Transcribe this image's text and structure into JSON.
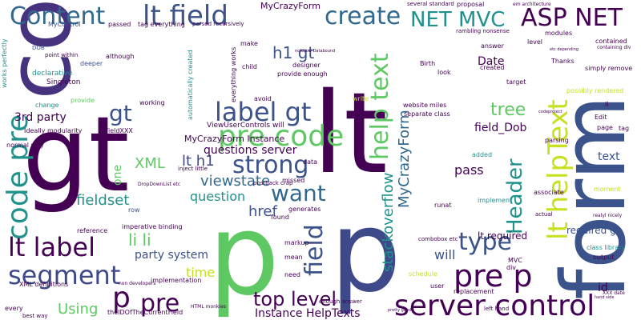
{
  "palette": {
    "dark_purple": "#440154",
    "indigo": "#3b528b",
    "teal": "#21918c",
    "green": "#5ec962",
    "yellow": "#c7e020"
  },
  "words": [
    {
      "id": "control",
      "text": "control",
      "size": 110,
      "color": "#46327e"
    },
    {
      "id": "gt-big",
      "text": "gt",
      "size": 130,
      "color": "#440154"
    },
    {
      "id": "lt",
      "text": "lt",
      "size": 140,
      "color": "#440154"
    },
    {
      "id": "p-big",
      "text": "p",
      "size": 140,
      "color": "#5ec962"
    },
    {
      "id": "p-big2",
      "text": "p",
      "size": 140,
      "color": "#3e4989"
    },
    {
      "id": "form",
      "text": "form",
      "size": 110,
      "color": "#3b528b"
    },
    {
      "id": "code-pre-v",
      "text": "code pre",
      "size": 36,
      "color": "#21918c"
    },
    {
      "id": "content",
      "text": "Content",
      "size": 30,
      "color": "#31688e"
    },
    {
      "id": "lt-field",
      "text": "lt field",
      "size": 34,
      "color": "#3b528b"
    },
    {
      "id": "create",
      "text": "create",
      "size": 30,
      "color": "#31688e"
    },
    {
      "id": "net-mvc",
      "text": "NET MVC",
      "size": 26,
      "color": "#21918c"
    },
    {
      "id": "asp-net",
      "text": "ASP NET",
      "size": 30,
      "color": "#440154"
    },
    {
      "id": "label-gt",
      "text": "label gt",
      "size": 32,
      "color": "#3b528b"
    },
    {
      "id": "pre-code",
      "text": "pre code",
      "size": 36,
      "color": "#5ec962"
    },
    {
      "id": "strong",
      "text": "strong",
      "size": 30,
      "color": "#3b528b"
    },
    {
      "id": "want",
      "text": "want",
      "size": 28,
      "color": "#31688e"
    },
    {
      "id": "lt-label",
      "text": "lt label",
      "size": 32,
      "color": "#440154"
    },
    {
      "id": "segment",
      "text": "segment",
      "size": 32,
      "color": "#3e4989"
    },
    {
      "id": "p-mid",
      "text": "p",
      "size": 36,
      "color": "#440154"
    },
    {
      "id": "pre-mid",
      "text": "pre",
      "size": 30,
      "color": "#440154"
    },
    {
      "id": "server-control",
      "text": "server control",
      "size": 36,
      "color": "#440154"
    },
    {
      "id": "pre-p",
      "text": "pre p",
      "size": 38,
      "color": "#440154"
    },
    {
      "id": "type",
      "text": "type",
      "size": 30,
      "color": "#3b528b"
    },
    {
      "id": "tree",
      "text": "tree",
      "size": 22,
      "color": "#5ec962"
    },
    {
      "id": "help-text",
      "text": "help text",
      "size": 30,
      "color": "#5ec962"
    },
    {
      "id": "lt-helptext",
      "text": "lt helpText",
      "size": 34,
      "color": "#c7e020"
    },
    {
      "id": "header",
      "text": "Header",
      "size": 26,
      "color": "#21918c"
    },
    {
      "id": "field-v",
      "text": "field",
      "size": 30,
      "color": "#3b528b"
    },
    {
      "id": "stackoverflow",
      "text": "stackoverflow",
      "size": 18,
      "color": "#21918c"
    },
    {
      "id": "myCrazyForm-v",
      "text": "MyCrazyForm",
      "size": 18,
      "color": "#31688e"
    },
    {
      "id": "top-level",
      "text": "top level",
      "size": 24,
      "color": "#440154"
    },
    {
      "id": "gt-mid",
      "text": "gt",
      "size": 28,
      "color": "#3b528b"
    },
    {
      "id": "h1-gt",
      "text": "h1 gt",
      "size": 20,
      "color": "#3b528b"
    },
    {
      "id": "li-li",
      "text": "li li",
      "size": 20,
      "color": "#5ec962"
    },
    {
      "id": "fieldset",
      "text": "fieldset",
      "size": 18,
      "color": "#21918c"
    },
    {
      "id": "viewstate",
      "text": "viewstate",
      "size": 18,
      "color": "#31688e"
    },
    {
      "id": "question",
      "text": "question",
      "size": 16,
      "color": "#21918c"
    },
    {
      "id": "href",
      "text": "href",
      "size": 18,
      "color": "#3b528b"
    },
    {
      "id": "lt-h1",
      "text": "lt h1",
      "size": 18,
      "color": "#3e4989"
    },
    {
      "id": "xml",
      "text": "XML",
      "size": 18,
      "color": "#5ec962"
    },
    {
      "id": "using",
      "text": "Using",
      "size": 18,
      "color": "#5ec962"
    },
    {
      "id": "time",
      "text": "time",
      "size": 16,
      "color": "#c7e020"
    },
    {
      "id": "party-system",
      "text": "party system",
      "size": 14,
      "color": "#3b528b"
    },
    {
      "id": "3rd-party",
      "text": "3rd party",
      "size": 14,
      "color": "#440154"
    },
    {
      "id": "questions-server",
      "text": "questions server",
      "size": 14,
      "color": "#440154"
    },
    {
      "id": "instance-helptexts",
      "text": "Instance HelpTexts",
      "size": 14,
      "color": "#440154"
    },
    {
      "id": "will",
      "text": "will",
      "size": 16,
      "color": "#3b528b"
    },
    {
      "id": "pass",
      "text": "pass",
      "size": 16,
      "color": "#440154"
    },
    {
      "id": "field-dob",
      "text": "field_Dob",
      "size": 14,
      "color": "#440154"
    },
    {
      "id": "date",
      "text": "Date",
      "size": 14,
      "color": "#440154"
    },
    {
      "id": "text-r",
      "text": "text",
      "size": 14,
      "color": "#3b528b"
    },
    {
      "id": "required-gt",
      "text": "required gt",
      "size": 12,
      "color": "#3b528b"
    },
    {
      "id": "lt-required",
      "text": "lt required",
      "size": 12,
      "color": "#440154"
    },
    {
      "id": "id",
      "text": "id",
      "size": 14,
      "color": "#440154"
    },
    {
      "id": "one",
      "text": "one",
      "size": 14,
      "color": "#5ec962"
    },
    {
      "id": "my-crazy-form-instance",
      "text": "MyCrazyForm Instance",
      "size": 11,
      "color": "#440154"
    },
    {
      "id": "viewusercontrols-will",
      "text": "ViewUserControls will",
      "size": 9,
      "color": "#440154"
    },
    {
      "id": "mycrazyform-top",
      "text": "MyCrazyForm",
      "size": 11,
      "color": "#440154"
    },
    {
      "id": "mycontrol",
      "text": "MyControl",
      "size": 8,
      "color": "#3b528b"
    },
    {
      "id": "passed",
      "text": "passed",
      "size": 8,
      "color": "#440154"
    },
    {
      "id": "dob",
      "text": "DOB",
      "size": 7,
      "color": "#3b528b"
    },
    {
      "id": "declarative",
      "text": "declarative",
      "size": 9,
      "color": "#21918c"
    },
    {
      "id": "singleton",
      "text": "Singleton",
      "size": 9,
      "color": "#440154"
    },
    {
      "id": "deeper",
      "text": "deeper",
      "size": 8,
      "color": "#3b528b"
    },
    {
      "id": "although",
      "text": "although",
      "size": 8,
      "color": "#440154"
    },
    {
      "id": "change",
      "text": "change",
      "size": 8,
      "color": "#21918c"
    },
    {
      "id": "provide",
      "text": "provide",
      "size": 8,
      "color": "#5ec962"
    },
    {
      "id": "working",
      "text": "working",
      "size": 8,
      "color": "#440154"
    },
    {
      "id": "fieldxxx",
      "text": "FieldXXX",
      "size": 8,
      "color": "#440154"
    },
    {
      "id": "ideally-modularity",
      "text": "Ideally modularity",
      "size": 8,
      "color": "#440154"
    },
    {
      "id": "normal-way",
      "text": "normal way",
      "size": 8,
      "color": "#440154"
    },
    {
      "id": "row",
      "text": "row",
      "size": 8,
      "color": "#3b528b"
    },
    {
      "id": "reference",
      "text": "reference",
      "size": 8,
      "color": "#440154"
    },
    {
      "id": "xml-definitions",
      "text": "XML definitions",
      "size": 8,
      "color": "#440154"
    },
    {
      "id": "every",
      "text": "every",
      "size": 8,
      "color": "#440154"
    },
    {
      "id": "best-way",
      "text": "best way",
      "size": 7,
      "color": "#440154"
    },
    {
      "id": "implementation",
      "text": "implementation",
      "size": 8,
      "color": "#440154"
    },
    {
      "id": "imperative-binding",
      "text": "imperative binding",
      "size": 8,
      "color": "#440154"
    },
    {
      "id": "postback-crap",
      "text": "postback crap",
      "size": 7,
      "color": "#440154"
    },
    {
      "id": "found",
      "text": "found",
      "size": 8,
      "color": "#440154"
    },
    {
      "id": "mean",
      "text": "mean",
      "size": 8,
      "color": "#440154"
    },
    {
      "id": "need",
      "text": "need",
      "size": 8,
      "color": "#440154"
    },
    {
      "id": "markup",
      "text": "markup",
      "size": 8,
      "color": "#440154"
    },
    {
      "id": "missed",
      "text": "missed",
      "size": 8,
      "color": "#440154"
    },
    {
      "id": "generates",
      "text": "generates",
      "size": 8,
      "color": "#440154"
    },
    {
      "id": "data",
      "text": "data",
      "size": 8,
      "color": "#440154"
    },
    {
      "id": "runat",
      "text": "runat",
      "size": 8,
      "color": "#440154"
    },
    {
      "id": "website",
      "text": "website",
      "size": 8,
      "color": "#440154"
    },
    {
      "id": "miles",
      "text": "miles",
      "size": 8,
      "color": "#440154"
    },
    {
      "id": "separate-class",
      "text": "separate class",
      "size": 8,
      "color": "#440154"
    },
    {
      "id": "combobox-etc",
      "text": "combobox etc",
      "size": 7,
      "color": "#440154"
    },
    {
      "id": "replacement",
      "text": "replacement",
      "size": 8,
      "color": "#440154"
    },
    {
      "id": "schedule",
      "text": "schedule",
      "size": 8,
      "color": "#c7e020"
    },
    {
      "id": "user",
      "text": "user",
      "size": 8,
      "color": "#440154"
    },
    {
      "id": "added",
      "text": "added",
      "size": 8,
      "color": "#21918c"
    },
    {
      "id": "implement",
      "text": "implement",
      "size": 8,
      "color": "#21918c"
    },
    {
      "id": "parsing",
      "text": "parsing",
      "size": 8,
      "color": "#440154"
    },
    {
      "id": "associate",
      "text": "associate",
      "size": 8,
      "color": "#440154"
    },
    {
      "id": "edit",
      "text": "Edit",
      "size": 8,
      "color": "#440154"
    },
    {
      "id": "page",
      "text": "page",
      "size": 8,
      "color": "#440154"
    },
    {
      "id": "tag",
      "text": "tag",
      "size": 8,
      "color": "#440154"
    },
    {
      "id": "li-small",
      "text": "li",
      "size": 8,
      "color": "#440154"
    },
    {
      "id": "thanks",
      "text": "Thanks",
      "size": 8,
      "color": "#440154"
    },
    {
      "id": "simply-remove",
      "text": "simply remove",
      "size": 8,
      "color": "#440154"
    },
    {
      "id": "contained",
      "text": "contained",
      "size": 8,
      "color": "#440154"
    },
    {
      "id": "possibly-rendered",
      "text": "possibly rendered",
      "size": 8,
      "color": "#c7e020"
    },
    {
      "id": "class-library",
      "text": "class library",
      "size": 8,
      "color": "#21918c"
    },
    {
      "id": "output",
      "text": "output",
      "size": 8,
      "color": "#440154"
    },
    {
      "id": "moment",
      "text": "moment",
      "size": 8,
      "color": "#c7e020"
    },
    {
      "id": "target",
      "text": "target",
      "size": 8,
      "color": "#440154"
    },
    {
      "id": "level",
      "text": "level",
      "size": 8,
      "color": "#440154"
    },
    {
      "id": "modules",
      "text": "modules",
      "size": 8,
      "color": "#440154"
    },
    {
      "id": "created",
      "text": "created",
      "size": 8,
      "color": "#440154"
    },
    {
      "id": "answer",
      "text": "answer",
      "size": 8,
      "color": "#440154"
    },
    {
      "id": "look",
      "text": "look",
      "size": 8,
      "color": "#440154"
    },
    {
      "id": "birth",
      "text": "Birth",
      "size": 8,
      "color": "#440154"
    },
    {
      "id": "designer",
      "text": "designer",
      "size": 8,
      "color": "#440154"
    },
    {
      "id": "provide-enough",
      "text": "provide enough",
      "size": 8,
      "color": "#440154"
    },
    {
      "id": "avoid",
      "text": "avoid",
      "size": 8,
      "color": "#440154"
    },
    {
      "id": "child",
      "text": "child",
      "size": 8,
      "color": "#440154"
    },
    {
      "id": "make",
      "text": "make",
      "size": 8,
      "color": "#440154"
    },
    {
      "id": "proposal",
      "text": "proposal",
      "size": 8,
      "color": "#440154"
    },
    {
      "id": "write",
      "text": "write",
      "size": 8,
      "color": "#c7e020"
    },
    {
      "id": "mvc",
      "text": "MVC",
      "size": 8,
      "color": "#440154"
    },
    {
      "id": "div",
      "text": "div",
      "size": 8,
      "color": "#440154"
    },
    {
      "id": "actual",
      "text": "actual",
      "size": 7,
      "color": "#440154"
    },
    {
      "id": "left-hand",
      "text": "left hand",
      "size": 7,
      "color": "#440154"
    },
    {
      "id": "html-monkies",
      "text": "HTML monkies",
      "size": 6,
      "color": "#440154"
    },
    {
      "id": "thelotOfTheCurrentField",
      "text": "theIDOfTheCurrentField",
      "size": 8,
      "color": "#440154"
    },
    {
      "id": "tag-everything",
      "text": "tag everything",
      "size": 8,
      "color": "#440154"
    },
    {
      "id": "parsed-recursively",
      "text": "parsed recursively",
      "size": 7,
      "color": "#440154"
    },
    {
      "id": "everything-works",
      "text": "everything works",
      "size": 8,
      "color": "#440154"
    },
    {
      "id": "point-within",
      "text": "point within",
      "size": 7,
      "color": "#440154"
    },
    {
      "id": "works-perfectly",
      "text": "works perfectly",
      "size": 8,
      "color": "#21918c"
    },
    {
      "id": "automatically-created",
      "text": "automatically created",
      "size": 8,
      "color": "#21918c"
    },
    {
      "id": "inject-little",
      "text": "inject little",
      "size": 7,
      "color": "#440154"
    },
    {
      "id": "dropdownlist-etc",
      "text": "DropDownList etc",
      "size": 6,
      "color": "#440154"
    },
    {
      "id": "several-standard",
      "text": "several standard",
      "size": 7,
      "color": "#440154"
    },
    {
      "id": "rambling-nonsense",
      "text": "rambling nonsense",
      "size": 7,
      "color": "#440154"
    },
    {
      "id": "em-architecture",
      "text": "em architecture",
      "size": 6,
      "color": "#440154"
    },
    {
      "id": "codeproject",
      "text": "codeproject",
      "size": 5,
      "color": "#440154"
    },
    {
      "id": "realyl-nicely",
      "text": "realyl nicely",
      "size": 6,
      "color": "#440154"
    },
    {
      "id": "enough-answer",
      "text": "enough answer",
      "size": 7,
      "color": "#440154"
    },
    {
      "id": "xxx-date",
      "text": "XXX date",
      "size": 6,
      "color": "#440154"
    },
    {
      "id": "hand-side",
      "text": "hand side",
      "size": 5,
      "color": "#440154"
    },
    {
      "id": "non-developers",
      "text": "non developers",
      "size": 6,
      "color": "#440154"
    },
    {
      "id": "pretty-good",
      "text": "pretty good",
      "size": 5,
      "color": "#440154"
    },
    {
      "id": "nofollow",
      "text": "nofollow Databound",
      "size": 5,
      "color": "#440154"
    },
    {
      "id": "containing-div",
      "text": "containing div",
      "size": 6,
      "color": "#440154"
    },
    {
      "id": "etc-depending",
      "text": "etc depending",
      "size": 5,
      "color": "#440154"
    }
  ]
}
